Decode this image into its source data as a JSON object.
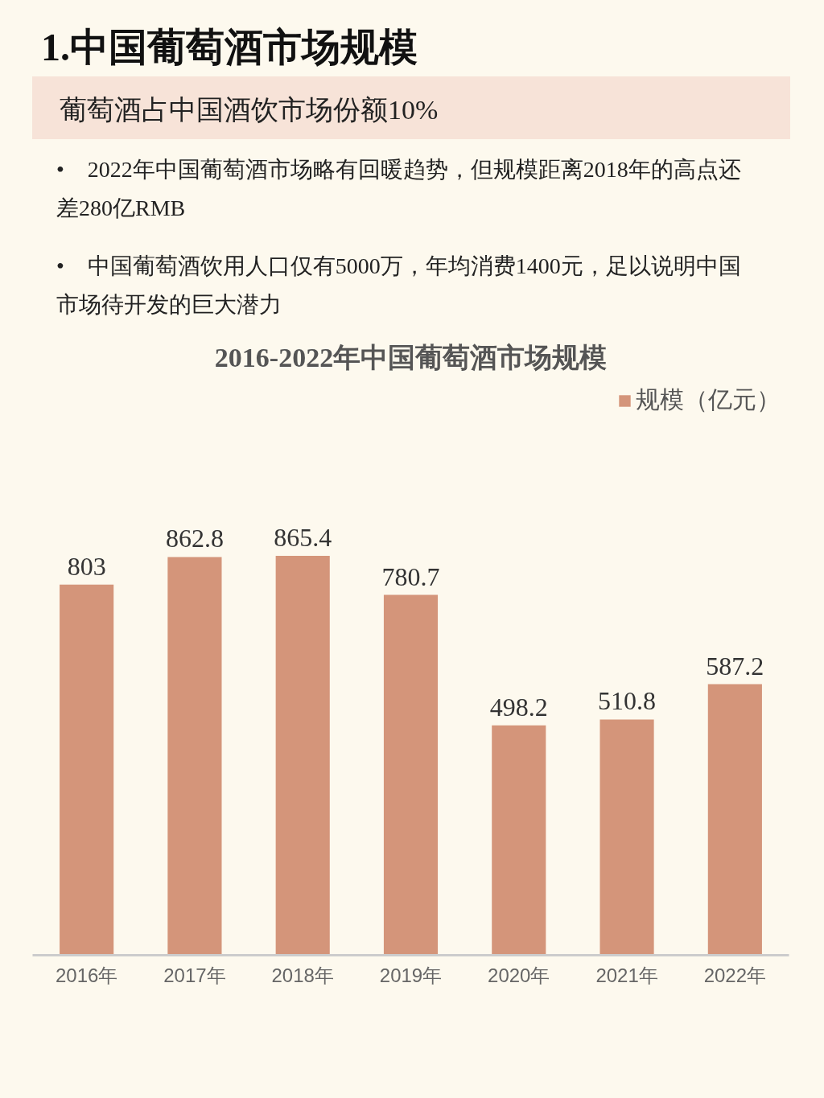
{
  "chart_data": {
    "type": "bar",
    "title": "1.中国葡萄酒市场规模",
    "subtitle": "葡萄酒占中国酒饮市场份额10%",
    "annotations": [
      "• 2022年中国葡萄酒市场略有回暖趋势，但规模距离2018年的高点还差280亿RMB",
      "• 中国葡萄酒饮用人口仅有5000万，年均消费1400元，足以说明中国市场待开发的巨大潜力",
      "2016-2022年中国葡萄酒市场规模"
    ],
    "categories": [
      "2016年",
      "2017年",
      "2018年",
      "2019年",
      "2020年",
      "2021年",
      "2022年"
    ],
    "series": [
      {
        "name": "规模（亿元）",
        "color": "#d4957a",
        "values": [
          803,
          862.8,
          865.4,
          780.7,
          498.2,
          510.8,
          587.2
        ]
      }
    ],
    "data_labels": true,
    "legend": "top right",
    "grid": false
  }
}
